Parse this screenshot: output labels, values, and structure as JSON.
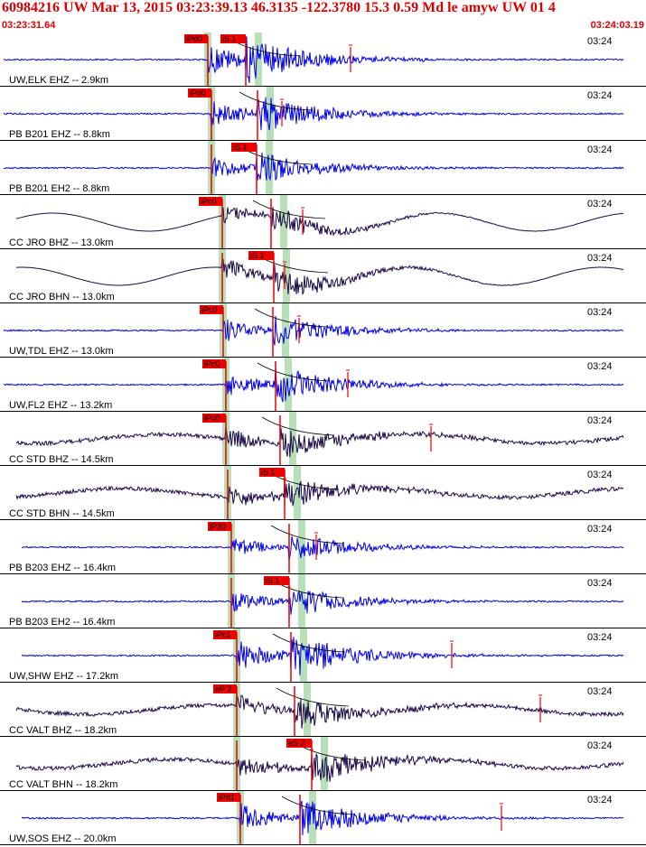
{
  "header": {
    "title": "60984216 UW Mar 13, 2015 03:23:39.13    46.3135 -122.3780 15.3 0.59 Md le amyw UW 01    4",
    "start_time": "03:23:31.64",
    "end_time": "03:24:03.19"
  },
  "colors": {
    "header_text": "#dd0000",
    "trace_ehz": "#0000ee",
    "trace_cc": "#1a0a4a",
    "pick_box": "#ee0000",
    "pick_band": "#b8e0b8",
    "separator": "#000000"
  },
  "traces": [
    {
      "label": "UW,ELK EHZ -- 2.9km",
      "time_label": "03:24",
      "type": "hf",
      "amp": 0.7,
      "p": 230,
      "s": 272,
      "p_tag": "iPd0",
      "s_tag": "iS 1",
      "mark": 388,
      "color": "#0000ee"
    },
    {
      "label": "PB B201 EHZ -- 8.8km",
      "time_label": "03:24",
      "type": "hf",
      "amp": 0.6,
      "p": 234,
      "s": 285,
      "p_tag": "iPd0",
      "s_tag": "",
      "mark": 312,
      "color": "#0000ee"
    },
    {
      "label": "PB B201 EH2 -- 8.8km",
      "time_label": "03:24",
      "type": "hf",
      "amp": 0.5,
      "p": 234,
      "s": 284,
      "p_tag": "",
      "s_tag": "iS 1",
      "mark": null,
      "color": "#0000ee"
    },
    {
      "label": "CC JRO BHZ -- 13.0km",
      "time_label": "03:24",
      "type": "lf",
      "amp": 0.4,
      "p": 246,
      "s": 300,
      "p_tag": "iPc0",
      "s_tag": "",
      "mark": 335,
      "color": "#1a0a4a"
    },
    {
      "label": "CC JRO BHN -- 13.0km",
      "time_label": "03:24",
      "type": "lf",
      "amp": 0.5,
      "p": 246,
      "s": 303,
      "p_tag": "",
      "s_tag": "iS 1",
      "mark": 315,
      "color": "#1a0a4a"
    },
    {
      "label": "UW,TDL EHZ -- 13.0km",
      "time_label": "03:24",
      "type": "hf",
      "amp": 0.55,
      "p": 247,
      "s": 302,
      "p_tag": "iPc0",
      "s_tag": "",
      "mark": 331,
      "color": "#0000ee"
    },
    {
      "label": "UW,FL2 EHZ -- 13.2km",
      "time_label": "03:24",
      "type": "hf",
      "amp": 0.55,
      "p": 250,
      "s": 305,
      "p_tag": "iPc0",
      "s_tag": "",
      "mark": 385,
      "color": "#0000ee"
    },
    {
      "label": "CC STD BHZ -- 14.5km",
      "time_label": "03:24",
      "type": "lfn",
      "amp": 0.5,
      "p": 250,
      "s": 310,
      "p_tag": "iPc0",
      "s_tag": "",
      "mark": 477,
      "color": "#1a0a4a"
    },
    {
      "label": "CC STD BHN -- 14.5km",
      "time_label": "03:24",
      "type": "lfn",
      "amp": 0.5,
      "p": 252,
      "s": 315,
      "p_tag": "",
      "s_tag": "iS 1",
      "mark": 315,
      "color": "#1a0a4a"
    },
    {
      "label": "PB B203 EHZ -- 16.4km",
      "time_label": "03:24",
      "type": "hf",
      "amp": 0.45,
      "p": 256,
      "s": 320,
      "p_tag": "iP30",
      "s_tag": "",
      "mark": 350,
      "color": "#0000ee"
    },
    {
      "label": "PB B203 EH2 -- 16.4km",
      "time_label": "03:24",
      "type": "hf",
      "amp": 0.5,
      "p": 256,
      "s": 320,
      "p_tag": "",
      "s_tag": "iS 1",
      "mark": 320,
      "color": "#0000ee"
    },
    {
      "label": "UW,SHW EHZ -- 17.2km",
      "time_label": "03:24",
      "type": "hf",
      "amp": 0.7,
      "p": 262,
      "s": 322,
      "p_tag": "iPc1",
      "s_tag": "",
      "mark": 500,
      "color": "#0000ee"
    },
    {
      "label": "CC VALT BHZ -- 18.2km",
      "time_label": "03:24",
      "type": "lfn",
      "amp": 0.5,
      "p": 262,
      "s": 326,
      "p_tag": "eP 2",
      "s_tag": "",
      "mark": 598,
      "color": "#1a0a4a"
    },
    {
      "label": "CC VALT BHN -- 18.2km",
      "time_label": "03:24",
      "type": "lfn",
      "amp": 0.55,
      "p": 262,
      "s": 345,
      "p_tag": "",
      "s_tag": "eS 2",
      "mark": 345,
      "color": "#1a0a4a"
    },
    {
      "label": "UW,SOS EHZ -- 20.0km",
      "time_label": "03:24",
      "type": "hf",
      "amp": 0.65,
      "p": 266,
      "s": 332,
      "p_tag": "iPd1",
      "s_tag": "",
      "mark": 555,
      "color": "#0000ee"
    }
  ]
}
